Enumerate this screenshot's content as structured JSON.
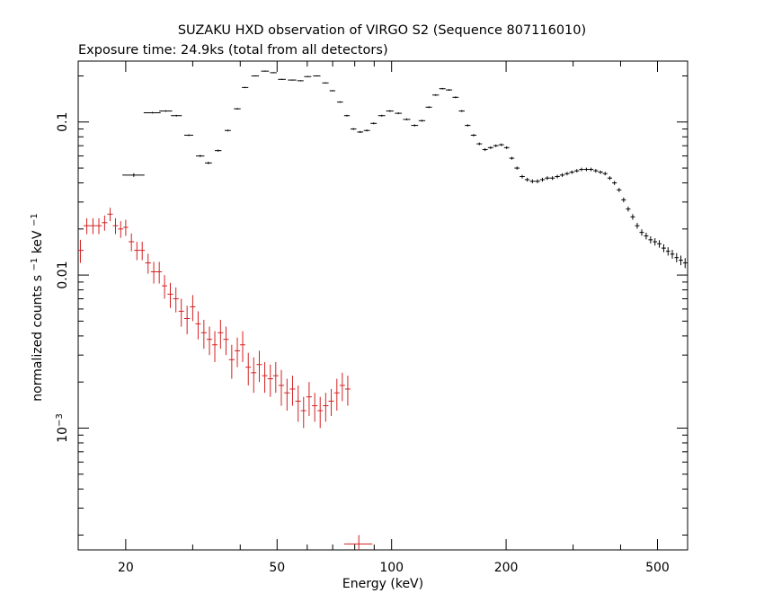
{
  "chart_data": {
    "type": "scatter",
    "title": "SUZAKU HXD observation of VIRGO S2 (Sequence 807116010)",
    "subtitle": "Exposure time: 24.9ks (total from all detectors)",
    "xlabel": "Energy (keV)",
    "ylabel": {
      "base": "normalized counts s",
      "exp1": "−1",
      "mid": " keV",
      "exp2": "−1"
    },
    "x_scale": "log",
    "y_scale": "log",
    "xlim": [
      15,
      600
    ],
    "ylim": [
      0.00016,
      0.25
    ],
    "grid": false,
    "x_ticks": [
      {
        "value": 20,
        "label": "20"
      },
      {
        "value": 50,
        "label": "50"
      },
      {
        "value": 100,
        "label": "100"
      },
      {
        "value": 200,
        "label": "200"
      },
      {
        "value": 500,
        "label": "500"
      }
    ],
    "y_ticks": [
      {
        "value": 0.1,
        "label": "0.1",
        "mantissa": "",
        "exponent": ""
      },
      {
        "value": 0.01,
        "label": "0.01",
        "mantissa": "",
        "exponent": ""
      },
      {
        "value": 0.001,
        "label": "",
        "mantissa": "10",
        "exponent": "−3"
      }
    ],
    "series": [
      {
        "color": "#000000",
        "x": [
          21.0,
          23.5,
          25.5,
          27.2,
          29.3,
          31.4,
          33.0,
          35.0,
          37.1,
          39.3,
          41.2,
          43.8,
          46.5,
          48.9,
          51.5,
          54.8,
          57.6,
          60.2,
          63.6,
          67.0,
          69.9,
          73.2,
          76.3,
          79.4,
          82.7,
          86.1,
          89.7,
          94.2,
          99.0,
          104.2,
          109.6,
          115.0,
          120.2,
          125.3,
          130.6,
          136.0,
          141.6,
          147.3,
          152.9,
          158.5,
          164.3,
          170.1,
          176.1,
          182.1,
          188.0,
          194.3,
          200.7,
          207.0,
          213.7,
          220.5,
          227.3,
          234.5,
          241.8,
          249.2,
          256.7,
          264.7,
          272.7,
          280.9,
          289.3,
          297.9,
          306.8,
          315.7,
          325.1,
          334.5,
          344.2,
          354.2,
          364.2,
          374.7,
          385.4,
          396.3,
          407.4,
          418.8,
          430.4,
          442.3,
          454.5,
          467.0,
          479.6,
          492.5,
          505.7,
          519.3,
          533.0,
          547.0,
          561.4,
          576.0,
          591.1
        ],
        "y": [
          0.045,
          0.115,
          0.118,
          0.11,
          0.082,
          0.06,
          0.054,
          0.065,
          0.088,
          0.122,
          0.168,
          0.2,
          0.215,
          0.21,
          0.19,
          0.188,
          0.186,
          0.198,
          0.2,
          0.18,
          0.16,
          0.135,
          0.11,
          0.09,
          0.086,
          0.088,
          0.098,
          0.11,
          0.118,
          0.114,
          0.104,
          0.095,
          0.102,
          0.125,
          0.15,
          0.165,
          0.162,
          0.145,
          0.118,
          0.095,
          0.082,
          0.072,
          0.066,
          0.068,
          0.07,
          0.071,
          0.068,
          0.058,
          0.05,
          0.044,
          0.042,
          0.041,
          0.041,
          0.042,
          0.043,
          0.043,
          0.044,
          0.045,
          0.046,
          0.047,
          0.048,
          0.049,
          0.049,
          0.049,
          0.048,
          0.047,
          0.046,
          0.043,
          0.04,
          0.036,
          0.031,
          0.027,
          0.024,
          0.021,
          0.019,
          0.018,
          0.017,
          0.0165,
          0.016,
          0.015,
          0.0143,
          0.0137,
          0.013,
          0.0125,
          0.012
        ],
        "x_err": [
          1.4,
          1.2,
          1.0,
          0.9,
          0.8,
          0.8,
          0.7,
          0.7,
          0.7,
          0.8,
          0.8,
          1.0,
          1.1,
          1.0,
          1.2,
          1.4,
          1.1,
          1.3,
          1.4,
          1.3,
          1.2,
          1.3,
          1.3,
          1.4,
          1.5,
          1.6,
          1.7,
          2.0,
          2.2,
          2.2,
          2.4,
          2.4,
          2.4,
          2.4,
          2.6,
          2.6,
          2.7,
          2.7,
          2.7,
          2.7,
          2.8,
          2.8,
          2.8,
          3.0,
          2.9,
          3.1,
          3.2,
          3.1,
          3.3,
          3.4,
          3.3,
          3.6,
          3.6,
          3.7,
          3.8,
          4.0,
          4.0,
          4.2,
          4.2,
          4.3,
          4.5,
          4.4,
          4.7,
          4.7,
          4.9,
          5.0,
          5.0,
          5.3,
          5.4,
          5.5,
          5.6,
          5.7,
          5.8,
          6.0,
          6.1,
          6.3,
          6.3,
          6.4,
          6.6,
          6.8,
          6.7,
          7.0,
          7.0,
          7.2,
          7.5
        ],
        "y_err": [
          0.0012,
          0.0014,
          0.0014,
          0.0013,
          0.0011,
          0.001,
          0.001,
          0.001,
          0.0012,
          0.0014,
          0.0016,
          0.0018,
          0.0018,
          0.0018,
          0.0016,
          0.0016,
          0.0016,
          0.0017,
          0.0017,
          0.0016,
          0.0015,
          0.0014,
          0.0014,
          0.0013,
          0.0013,
          0.0013,
          0.0014,
          0.0015,
          0.0016,
          0.0016,
          0.0015,
          0.0015,
          0.0015,
          0.0017,
          0.0019,
          0.002,
          0.002,
          0.0019,
          0.0017,
          0.0016,
          0.0015,
          0.0014,
          0.0014,
          0.0014,
          0.0014,
          0.0014,
          0.0014,
          0.0013,
          0.0012,
          0.0012,
          0.0012,
          0.0012,
          0.0012,
          0.0012,
          0.0012,
          0.0012,
          0.0012,
          0.0012,
          0.0012,
          0.0012,
          0.0012,
          0.0013,
          0.0013,
          0.0013,
          0.0013,
          0.0012,
          0.0012,
          0.0012,
          0.0012,
          0.0011,
          0.0011,
          0.001,
          0.001,
          0.0009,
          0.0009,
          0.0009,
          0.0009,
          0.0009,
          0.0009,
          0.0009,
          0.0009,
          0.0009,
          0.0009,
          0.0009,
          0.0009
        ]
      },
      {
        "color": "#d42020",
        "x": [
          15.2,
          15.8,
          16.4,
          17.0,
          17.6,
          18.2,
          18.8,
          19.4,
          20.0,
          20.7,
          21.4,
          22.1,
          22.9,
          23.7,
          24.5,
          25.3,
          26.2,
          27.1,
          28.0,
          29.0,
          30.0,
          31.0,
          32.1,
          33.2,
          34.3,
          35.5,
          36.7,
          38.0,
          39.3,
          40.6,
          42.0,
          43.4,
          44.9,
          46.4,
          48.0,
          49.6,
          51.3,
          53.1,
          54.9,
          56.8,
          58.7,
          60.7,
          62.8,
          64.9,
          67.1,
          69.4,
          71.8,
          74.2,
          76.7
        ],
        "y": [
          0.0145,
          0.021,
          0.021,
          0.021,
          0.022,
          0.025,
          0.021,
          0.02,
          0.0205,
          0.0165,
          0.0145,
          0.0145,
          0.012,
          0.0105,
          0.0105,
          0.0085,
          0.0075,
          0.007,
          0.0058,
          0.0052,
          0.0062,
          0.0048,
          0.0042,
          0.0038,
          0.0035,
          0.0042,
          0.0038,
          0.0028,
          0.0032,
          0.0035,
          0.0025,
          0.0023,
          0.0026,
          0.0022,
          0.0021,
          0.0022,
          0.0019,
          0.0017,
          0.0018,
          0.0015,
          0.0013,
          0.0016,
          0.0014,
          0.0013,
          0.0014,
          0.0015,
          0.0017,
          0.0019,
          0.0018
        ],
        "x_err": [
          0.3,
          0.3,
          0.3,
          0.3,
          0.3,
          0.3,
          0.3,
          0.3,
          0.3,
          0.35,
          0.35,
          0.35,
          0.4,
          0.4,
          0.4,
          0.4,
          0.45,
          0.45,
          0.45,
          0.5,
          0.5,
          0.5,
          0.55,
          0.55,
          0.55,
          0.6,
          0.6,
          0.65,
          0.65,
          0.65,
          0.7,
          0.7,
          0.75,
          0.75,
          0.8,
          0.8,
          0.85,
          0.9,
          0.9,
          0.95,
          0.95,
          1.0,
          1.05,
          1.05,
          1.1,
          1.15,
          1.2,
          1.2,
          1.25
        ],
        "y_err": [
          0.0025,
          0.0025,
          0.0025,
          0.0025,
          0.0025,
          0.0025,
          0.0025,
          0.0025,
          0.0025,
          0.0022,
          0.002,
          0.002,
          0.0018,
          0.0017,
          0.0017,
          0.0015,
          0.0014,
          0.0013,
          0.0012,
          0.0011,
          0.0012,
          0.001,
          0.0009,
          0.0008,
          0.0008,
          0.0009,
          0.0008,
          0.0007,
          0.0007,
          0.0008,
          0.0006,
          0.0006,
          0.0006,
          0.0005,
          0.0005,
          0.0005,
          0.0005,
          0.0004,
          0.0004,
          0.0004,
          0.0003,
          0.0004,
          0.0003,
          0.0003,
          0.0003,
          0.0003,
          0.0004,
          0.0004,
          0.0004
        ]
      },
      {
        "color": "#d42020",
        "x": [
          82.0
        ],
        "y": [
          0.000175
        ],
        "x_err": [
          7.0
        ],
        "y_err": [
          2.5e-05
        ]
      }
    ]
  }
}
